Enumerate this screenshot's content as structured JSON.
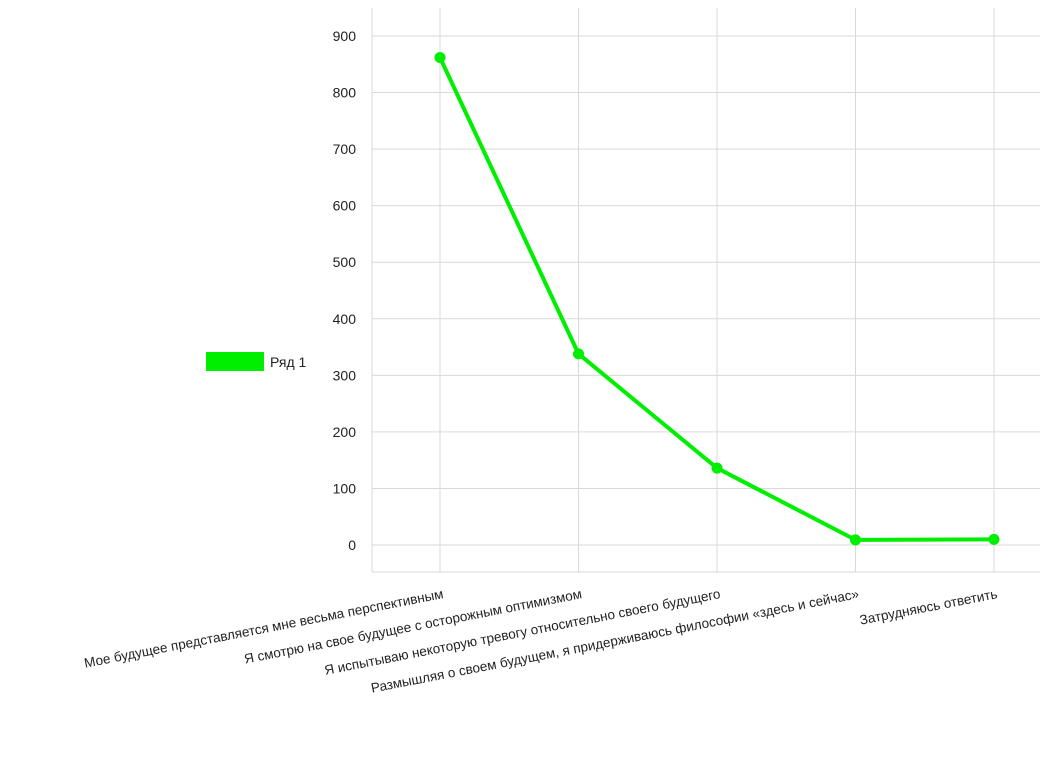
{
  "chart_data": {
    "type": "line",
    "title": "",
    "xlabel": "",
    "ylabel": "",
    "categories": [
      "Мое будущее представляется мне весьма перспективным",
      "Я смотрю на свое будущее с осторожным оптимизмом",
      "Я испытываю некоторую тревогу относительно своего будущего",
      "Размышляя о своем будущем, я придерживаюсь философии «здесь и сейчас»",
      "Затрудняюсь ответить"
    ],
    "series": [
      {
        "name": "Ряд 1",
        "values": [
          862,
          338,
          136,
          9,
          10
        ],
        "color": "#00ee00"
      }
    ],
    "ylim": [
      -50,
      950
    ],
    "yticks": [
      0,
      100,
      200,
      300,
      400,
      500,
      600,
      700,
      800,
      900
    ],
    "grid": true,
    "legend": {
      "placement": "left",
      "label": "Ряд 1"
    }
  }
}
